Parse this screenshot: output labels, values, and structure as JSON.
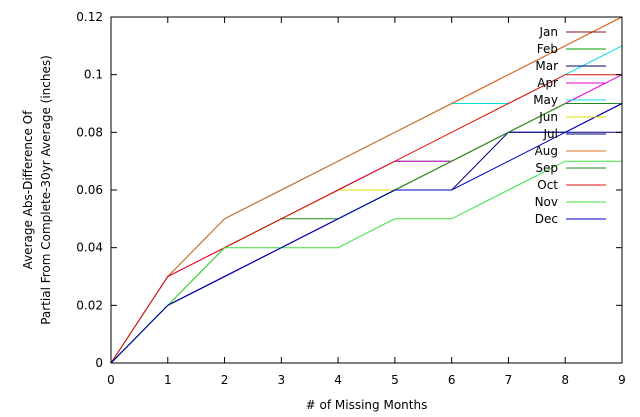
{
  "chart_data": {
    "type": "line",
    "title": "",
    "xlabel": "# of Missing Months",
    "ylabel_lines": [
      "Average Abs-Difference Of",
      "Partial From Complete-30yr Average (inches)"
    ],
    "xlim": [
      0,
      9
    ],
    "ylim": [
      0,
      0.12
    ],
    "x_ticks": [
      0,
      1,
      2,
      3,
      4,
      5,
      6,
      7,
      8,
      9
    ],
    "y_ticks": [
      0,
      0.02,
      0.04,
      0.06,
      0.08,
      0.1,
      0.12
    ],
    "x_tick_labels": [
      "0",
      "1",
      "2",
      "3",
      "4",
      "5",
      "6",
      "7",
      "8",
      "9"
    ],
    "y_tick_labels": [
      "0",
      "0.02",
      "0.04",
      "0.06",
      "0.08",
      "0.1",
      "0.12"
    ],
    "grid": false,
    "legend_position": "top-right",
    "x": [
      0,
      1,
      2,
      3,
      4,
      5,
      6,
      7,
      8,
      9
    ],
    "series": [
      {
        "name": "Jan",
        "color": "#8b1a1a",
        "values": [
          0,
          0.03,
          0.05,
          0.06,
          0.07,
          0.08,
          0.09,
          0.1,
          0.11,
          0.12
        ]
      },
      {
        "name": "Feb",
        "color": "#00a000",
        "values": [
          0,
          0.02,
          0.04,
          0.05,
          0.06,
          0.07,
          0.07,
          0.08,
          0.09,
          0.09
        ]
      },
      {
        "name": "Mar",
        "color": "#000070",
        "values": [
          0,
          0.02,
          0.03,
          0.04,
          0.05,
          0.06,
          0.07,
          0.08,
          0.08,
          0.09
        ]
      },
      {
        "name": "Apr",
        "color": "#e000e0",
        "values": [
          0,
          0.03,
          0.04,
          0.05,
          0.06,
          0.07,
          0.07,
          0.08,
          0.09,
          0.1
        ]
      },
      {
        "name": "May",
        "color": "#00e0e0",
        "values": [
          0,
          0.03,
          0.05,
          0.06,
          0.07,
          0.08,
          0.09,
          0.09,
          0.1,
          0.11
        ]
      },
      {
        "name": "Jun",
        "color": "#e0e000",
        "values": [
          0,
          0.02,
          0.04,
          0.05,
          0.06,
          0.06,
          0.07,
          0.08,
          0.09,
          0.09
        ]
      },
      {
        "name": "Jul",
        "color": "#000080",
        "values": [
          0,
          0.02,
          0.03,
          0.04,
          0.05,
          0.06,
          0.06,
          0.08,
          0.08,
          0.08
        ]
      },
      {
        "name": "Aug",
        "color": "#e07020",
        "values": [
          0,
          0.03,
          0.05,
          0.06,
          0.07,
          0.08,
          0.09,
          0.1,
          0.11,
          0.12
        ]
      },
      {
        "name": "Sep",
        "color": "#228b22",
        "values": [
          0,
          0.02,
          0.04,
          0.05,
          0.05,
          0.06,
          0.07,
          0.08,
          0.09,
          0.09
        ]
      },
      {
        "name": "Oct",
        "color": "#e01010",
        "values": [
          0,
          0.03,
          0.04,
          0.05,
          0.06,
          0.07,
          0.08,
          0.09,
          0.1,
          0.1
        ]
      },
      {
        "name": "Nov",
        "color": "#40e040",
        "values": [
          0,
          0.02,
          0.04,
          0.04,
          0.04,
          0.05,
          0.05,
          0.06,
          0.07,
          0.07
        ]
      },
      {
        "name": "Dec",
        "color": "#0000c0",
        "values": [
          0,
          0.02,
          0.03,
          0.04,
          0.05,
          0.06,
          0.06,
          0.07,
          0.08,
          0.09
        ]
      }
    ]
  }
}
